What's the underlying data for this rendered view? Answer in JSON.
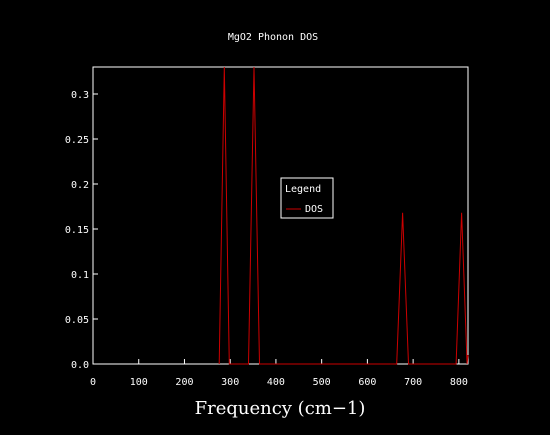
{
  "chart_data": {
    "type": "line",
    "title": "MgO2 Phonon DOS",
    "xlabel": "Frequency (cm−1)",
    "ylabel": "",
    "xlim": [
      0,
      820
    ],
    "ylim": [
      0,
      0.33
    ],
    "xticks": [
      0,
      100,
      200,
      300,
      400,
      500,
      600,
      700,
      800
    ],
    "xtick_labels": [
      "0",
      "100",
      "200",
      "300",
      "400",
      "500",
      "600",
      "700",
      "800"
    ],
    "yticks": [
      0,
      0.05,
      0.1,
      0.15,
      0.2,
      0.25,
      0.3
    ],
    "ytick_labels": [
      "0.0",
      "0.05",
      "0.1",
      "0.15",
      "0.2",
      "0.25",
      "0.3"
    ],
    "grid": false,
    "legend": {
      "title": "Legend",
      "placement": "center"
    },
    "series": [
      {
        "name": "DOS",
        "color": "#cc0000",
        "points": [
          [
            276,
            0
          ],
          [
            287,
            0.33
          ],
          [
            298,
            0
          ],
          [
            340,
            0
          ],
          [
            352,
            0.33
          ],
          [
            364,
            0
          ],
          [
            664,
            0
          ],
          [
            677,
            0.168
          ],
          [
            690,
            0
          ],
          [
            794,
            0
          ],
          [
            806,
            0.168
          ],
          [
            818,
            0
          ],
          [
            820,
            0.01
          ]
        ]
      }
    ]
  },
  "colors": {
    "background": "#000000",
    "axis": "#ffffff",
    "series": "#cc0000"
  }
}
